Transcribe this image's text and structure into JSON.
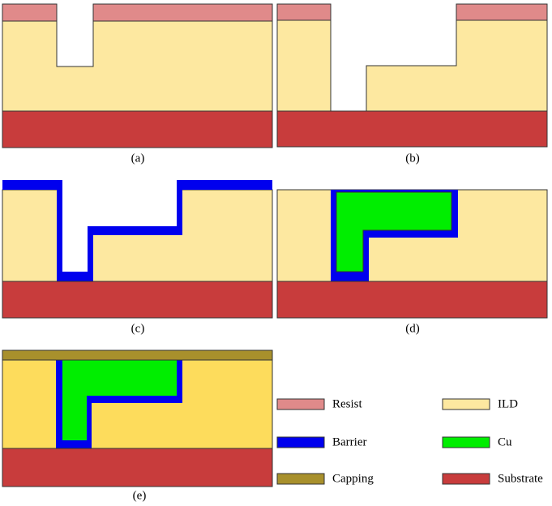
{
  "panels": [
    {
      "label": "(a)"
    },
    {
      "label": "(b)"
    },
    {
      "label": "(c)"
    },
    {
      "label": "(d)"
    },
    {
      "label": "(e)"
    }
  ],
  "legend": [
    {
      "label": "Resist"
    },
    {
      "label": "ILD"
    },
    {
      "label": "Barrier"
    },
    {
      "label": "Cu"
    },
    {
      "label": "Capping"
    },
    {
      "label": "Substrate"
    }
  ]
}
